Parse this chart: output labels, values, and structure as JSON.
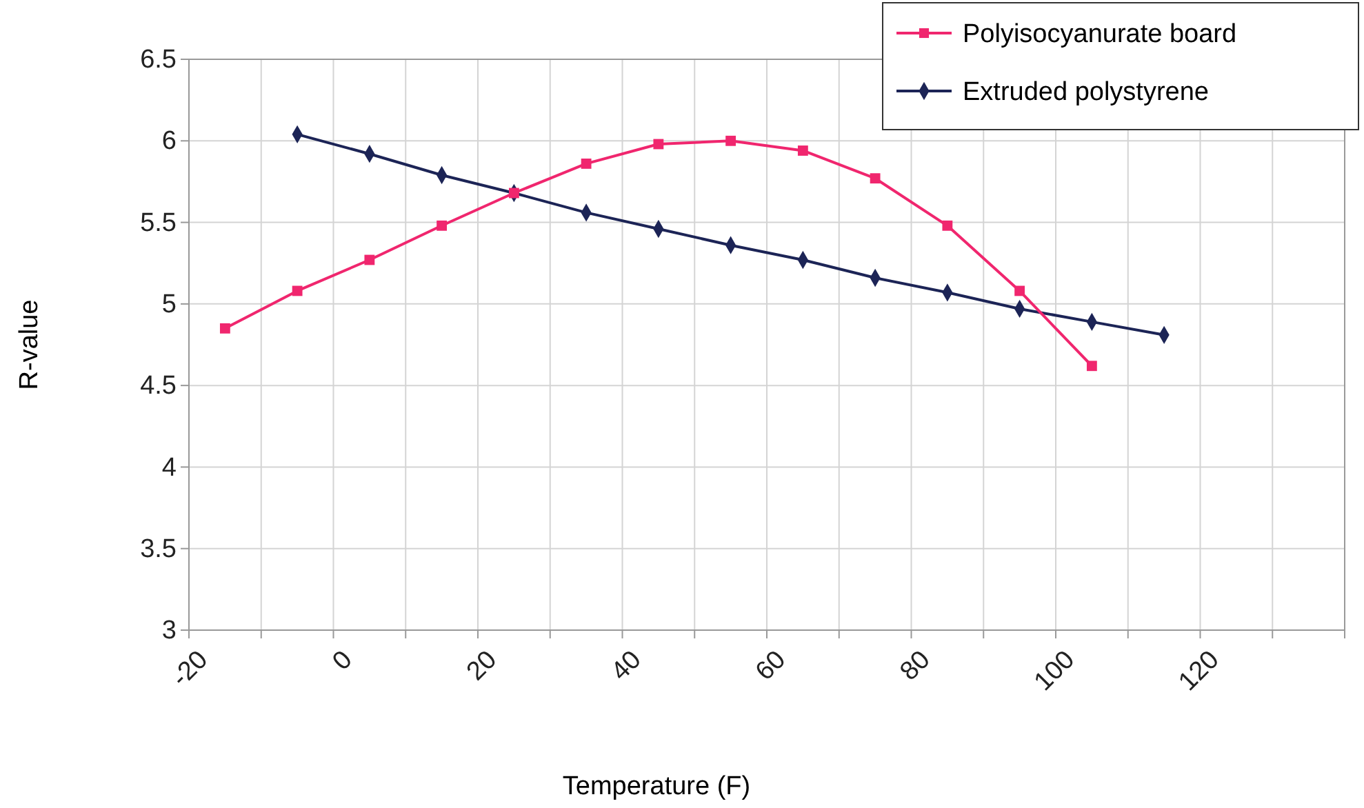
{
  "chart_data": {
    "type": "line",
    "xlabel": "Temperature (F)",
    "ylabel": "R-value",
    "xlim": [
      -20,
      140
    ],
    "xticks": [
      -20,
      {
        "value": -10,
        "label": null
      },
      0,
      {
        "value": 10,
        "label": null
      },
      20,
      {
        "value": 30,
        "label": null
      },
      40,
      {
        "value": 50,
        "label": null
      },
      60,
      {
        "value": 70,
        "label": null
      },
      80,
      {
        "value": 90,
        "label": null
      },
      100,
      {
        "value": 110,
        "label": null
      },
      120,
      {
        "value": 130,
        "label": null
      },
      {
        "value": 140,
        "label": null
      }
    ],
    "ylim": [
      3,
      6.5
    ],
    "yticks": [
      3,
      3.5,
      4,
      4.5,
      5,
      5.5,
      6,
      6.5
    ],
    "grid": true,
    "legend": "top right",
    "series": [
      {
        "name": "Polyisocyanurate board",
        "color": "#f0266e",
        "marker": "square",
        "x": [
          -15,
          -5,
          5,
          15,
          25,
          35,
          45,
          55,
          65,
          75,
          85,
          95,
          105
        ],
        "values": [
          4.85,
          5.08,
          5.27,
          5.48,
          5.68,
          5.86,
          5.98,
          6.0,
          5.94,
          5.77,
          5.48,
          5.08,
          4.62
        ]
      },
      {
        "name": "Extruded polystyrene",
        "color": "#1c2456",
        "marker": "diamond",
        "x": [
          -5,
          5,
          15,
          25,
          35,
          45,
          55,
          65,
          75,
          85,
          95,
          105,
          115
        ],
        "values": [
          6.04,
          5.92,
          5.79,
          5.68,
          5.56,
          5.46,
          5.36,
          5.27,
          5.16,
          5.07,
          4.97,
          4.89,
          4.81
        ]
      }
    ]
  }
}
